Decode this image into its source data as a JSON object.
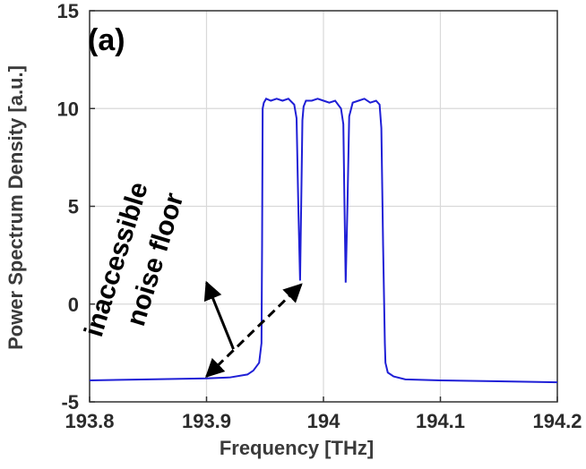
{
  "chart_data": {
    "type": "line",
    "panel_label": "(a)",
    "xlabel": "Frequency [THz]",
    "ylabel": "Power Spectrum Density [a.u.]",
    "xlim": [
      193.8,
      194.2
    ],
    "ylim": [
      -5,
      15
    ],
    "x_ticks": [
      "193.8",
      "193.9",
      "194",
      "194.1",
      "194.2"
    ],
    "y_ticks": [
      "-5",
      "0",
      "5",
      "10",
      "15"
    ],
    "grid": true,
    "series": [
      {
        "color": "#1f1fd6",
        "x": [
          193.8,
          193.85,
          193.9,
          193.92,
          193.935,
          193.94,
          193.945,
          193.947,
          193.9475,
          193.948,
          193.949,
          193.951,
          193.955,
          193.96,
          193.965,
          193.97,
          193.975,
          193.977,
          193.9785,
          193.98,
          193.982,
          193.983,
          193.985,
          193.99,
          193.995,
          194.0,
          194.005,
          194.01,
          194.015,
          194.017,
          194.018,
          194.019,
          194.0205,
          194.022,
          194.025,
          194.03,
          194.035,
          194.04,
          194.045,
          194.048,
          194.0495,
          194.051,
          194.0525,
          194.053,
          194.055,
          194.06,
          194.07,
          194.1,
          194.15,
          194.2
        ],
        "y": [
          -3.9,
          -3.85,
          -3.8,
          -3.75,
          -3.6,
          -3.4,
          -3.0,
          -2.0,
          3.0,
          10.0,
          10.3,
          10.5,
          10.4,
          10.5,
          10.4,
          10.5,
          10.2,
          9.5,
          5.0,
          1.2,
          9.4,
          10.1,
          10.4,
          10.4,
          10.5,
          10.4,
          10.3,
          10.4,
          10.0,
          9.2,
          5.0,
          1.1,
          5.0,
          9.6,
          10.3,
          10.4,
          10.5,
          10.3,
          10.4,
          10.2,
          9.0,
          3.0,
          -2.0,
          -3.0,
          -3.5,
          -3.7,
          -3.85,
          -3.9,
          -3.95,
          -4.0
        ]
      }
    ],
    "annotations": [
      {
        "text": "inaccessible",
        "line": 1
      },
      {
        "text": "noise floor",
        "line": 2
      }
    ],
    "arrows": [
      {
        "style": "solid",
        "from": [
          193.923,
          -2.3
        ],
        "to": [
          193.9,
          1.1
        ]
      },
      {
        "style": "dashed",
        "from": [
          193.9,
          -3.7
        ],
        "to": [
          193.981,
          1.0
        ],
        "double_headed": true
      }
    ]
  }
}
